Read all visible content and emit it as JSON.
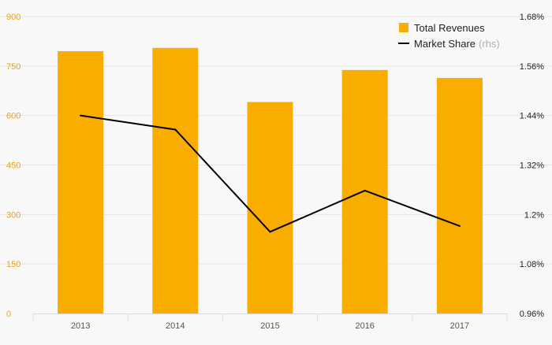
{
  "colors": {
    "bar": "#f9ad00",
    "line": "#000000",
    "left_axis_text": "#f3a300",
    "grid": "#e6e6e6",
    "axis": "#d6dbe6"
  },
  "legend": {
    "placement": "top-right",
    "revenues_label": "Total Revenues",
    "share_label": "Market Share",
    "share_suffix": "(rhs)"
  },
  "chart_data": {
    "type": "bar",
    "title": "",
    "xlabel": "",
    "ylabel": "",
    "categories": [
      "2013",
      "2014",
      "2015",
      "2016",
      "2017"
    ],
    "series": [
      {
        "name": "Total Revenues",
        "kind": "bar",
        "axis": "left",
        "values": [
          795,
          805,
          641,
          738,
          714
        ]
      },
      {
        "name": "Market Share",
        "kind": "line",
        "axis": "right",
        "values": [
          1.44,
          1.406,
          1.158,
          1.258,
          1.172
        ]
      }
    ],
    "ylim": [
      0,
      900
    ],
    "y_ticks": [
      "0",
      "150",
      "300",
      "450",
      "600",
      "750",
      "900"
    ],
    "y2lim": [
      0.96,
      1.68
    ],
    "y2_ticks": [
      "0.96%",
      "1.08%",
      "1.2%",
      "1.32%",
      "1.44%",
      "1.56%",
      "1.68%"
    ],
    "grid": true
  }
}
